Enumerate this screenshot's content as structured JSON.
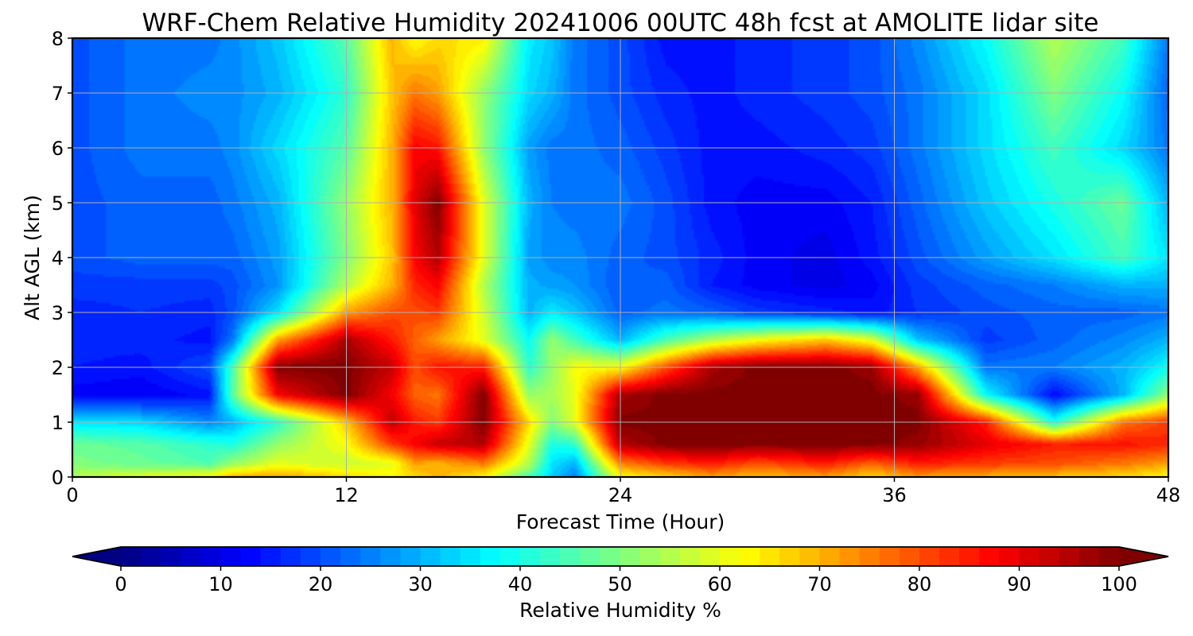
{
  "chart_data": {
    "type": "heatmap",
    "title": "WRF-Chem Relative Humidity 20241006 00UTC 48h fcst at AMOLITE lidar site",
    "xlabel": "Forecast Time (Hour)",
    "ylabel": "Alt AGL (km)",
    "xlim": [
      0,
      48
    ],
    "ylim": [
      0,
      8
    ],
    "xticks": [
      0,
      12,
      24,
      36,
      48
    ],
    "yticks": [
      0,
      1,
      2,
      3,
      4,
      5,
      6,
      7,
      8
    ],
    "grid": true,
    "colormap": "jet",
    "colorbar": {
      "label": "Relative Humidity %",
      "range": [
        0,
        100
      ],
      "ticks": [
        0,
        10,
        20,
        30,
        40,
        50,
        60,
        70,
        80,
        90,
        100
      ],
      "extend": "both",
      "orientation": "horizontal",
      "placement": "bottom"
    },
    "x": [
      0,
      3,
      6,
      7,
      9,
      12,
      14,
      15,
      16,
      18,
      20,
      21,
      22,
      24,
      26,
      28,
      30,
      33,
      35,
      37,
      40,
      43,
      46,
      48
    ],
    "y": [
      0,
      0.25,
      0.6,
      1,
      1.5,
      2,
      2.5,
      3,
      3.5,
      4,
      5,
      6,
      7,
      8
    ],
    "z": [
      [
        55,
        60,
        63,
        70,
        72,
        66,
        63,
        66,
        70,
        63,
        45,
        33,
        25,
        62,
        66,
        72,
        68,
        72,
        66,
        72,
        70,
        68,
        66,
        62
      ],
      [
        50,
        48,
        45,
        52,
        60,
        57,
        60,
        72,
        70,
        76,
        55,
        35,
        30,
        75,
        82,
        85,
        80,
        85,
        78,
        85,
        82,
        80,
        76,
        72
      ],
      [
        48,
        46,
        42,
        40,
        52,
        62,
        82,
        88,
        93,
        95,
        60,
        40,
        42,
        95,
        100,
        100,
        100,
        100,
        100,
        98,
        90,
        85,
        86,
        84
      ],
      [
        35,
        34,
        26,
        30,
        42,
        68,
        94,
        85,
        82,
        100,
        66,
        50,
        60,
        100,
        100,
        100,
        100,
        100,
        100,
        100,
        85,
        40,
        76,
        82
      ],
      [
        12,
        11,
        14,
        46,
        88,
        100,
        88,
        78,
        76,
        100,
        52,
        54,
        60,
        96,
        100,
        100,
        100,
        100,
        100,
        98,
        38,
        13,
        30,
        52
      ],
      [
        15,
        14,
        20,
        44,
        100,
        100,
        93,
        80,
        86,
        85,
        42,
        52,
        62,
        62,
        80,
        96,
        100,
        100,
        98,
        72,
        24,
        25,
        30,
        38
      ],
      [
        16,
        16,
        14,
        24,
        72,
        96,
        85,
        78,
        72,
        60,
        38,
        52,
        44,
        30,
        45,
        55,
        62,
        68,
        60,
        32,
        18,
        22,
        26,
        30
      ],
      [
        16,
        17,
        16,
        20,
        35,
        72,
        80,
        80,
        82,
        58,
        30,
        36,
        32,
        22,
        24,
        22,
        18,
        16,
        14,
        17,
        20,
        22,
        22,
        24
      ],
      [
        18,
        18,
        18,
        20,
        27,
        55,
        70,
        84,
        88,
        55,
        30,
        28,
        27,
        21,
        22,
        15,
        12,
        10,
        12,
        18,
        22,
        25,
        30,
        30
      ],
      [
        20,
        22,
        22,
        22,
        28,
        50,
        68,
        88,
        95,
        60,
        28,
        26,
        26,
        22,
        20,
        16,
        12,
        10,
        14,
        20,
        28,
        35,
        44,
        35
      ],
      [
        20,
        22,
        22,
        24,
        30,
        52,
        70,
        90,
        100,
        60,
        30,
        25,
        24,
        24,
        20,
        14,
        12,
        12,
        15,
        22,
        32,
        40,
        48,
        30
      ],
      [
        20,
        24,
        24,
        26,
        34,
        46,
        70,
        88,
        86,
        52,
        28,
        24,
        24,
        22,
        18,
        14,
        14,
        16,
        18,
        24,
        34,
        44,
        34,
        24
      ],
      [
        20,
        24,
        26,
        26,
        30,
        42,
        68,
        76,
        72,
        52,
        34,
        30,
        24,
        20,
        16,
        14,
        16,
        18,
        20,
        24,
        34,
        50,
        38,
        22
      ],
      [
        20,
        24,
        24,
        26,
        32,
        46,
        70,
        62,
        66,
        64,
        36,
        32,
        24,
        20,
        14,
        14,
        16,
        18,
        20,
        26,
        38,
        55,
        44,
        24
      ]
    ]
  }
}
